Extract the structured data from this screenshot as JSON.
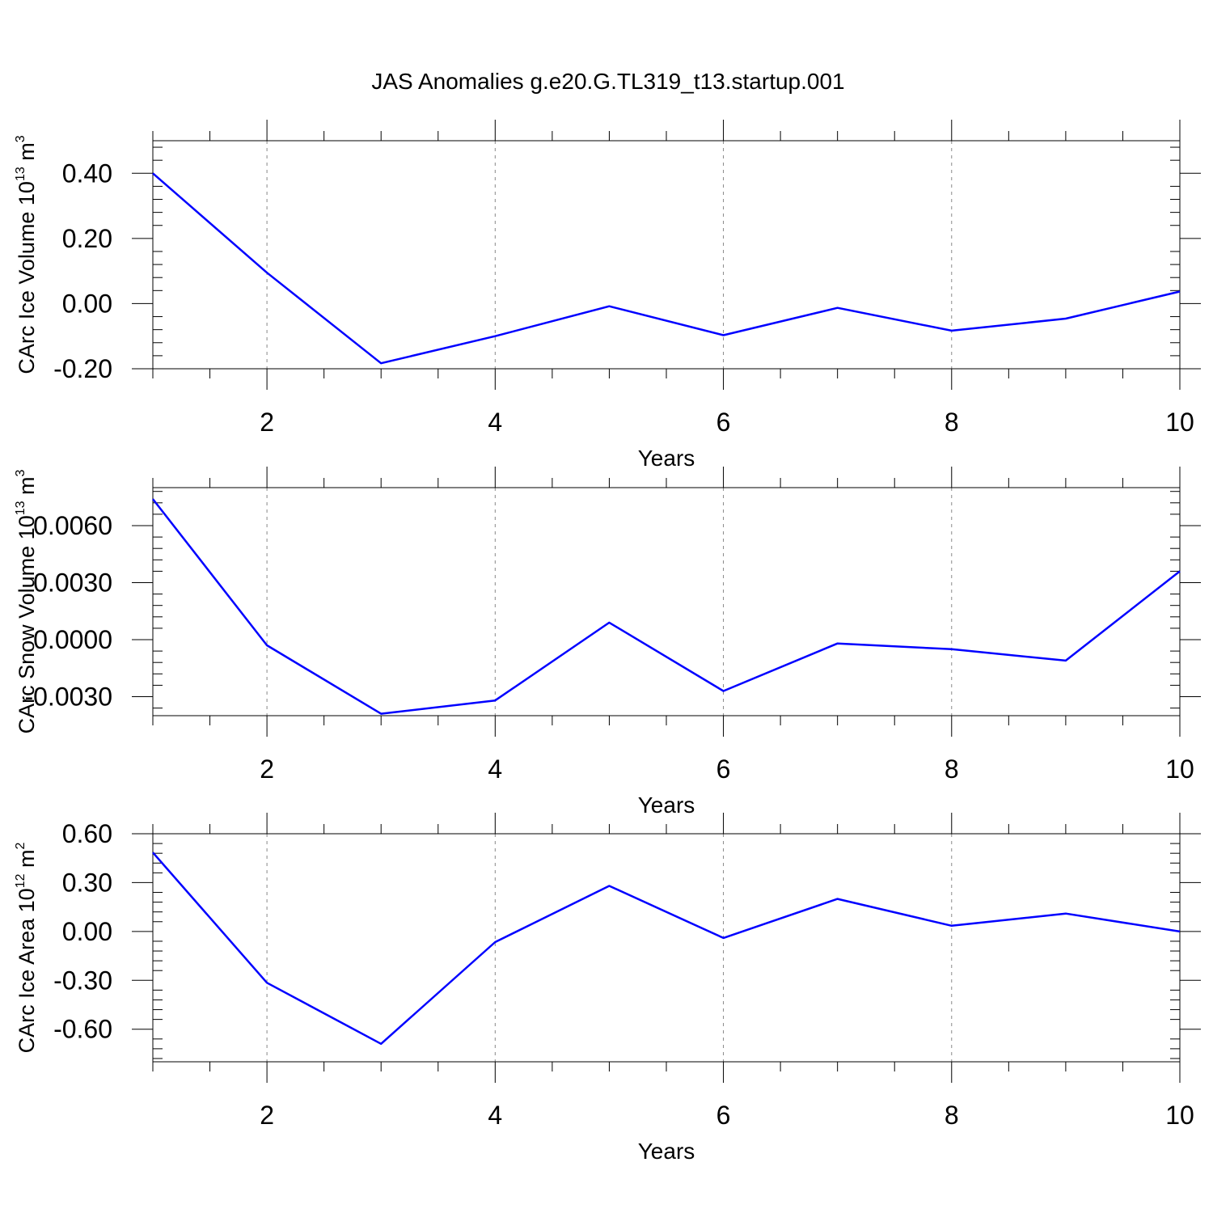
{
  "title": "JAS Anomalies g.e20.G.TL319_t13.startup.001",
  "line_color": "#0000ff",
  "chart_data": [
    {
      "type": "line",
      "ylabel": {
        "text": "CArc Ice Volume 10",
        "sup": "13",
        "unit": " m",
        "unit_sup": "3"
      },
      "xlabel": "Years",
      "xlim": [
        1,
        10
      ],
      "ylim": [
        -0.2,
        0.5
      ],
      "yticks": [
        -0.2,
        0.0,
        0.2,
        0.4
      ],
      "ytick_labels": [
        "-0.20",
        "0.00",
        "0.20",
        "0.40"
      ],
      "xticks": [
        2,
        4,
        6,
        8,
        10
      ],
      "x": [
        1,
        2,
        3,
        4,
        5,
        6,
        7,
        8,
        9,
        10
      ],
      "values": [
        0.4,
        0.095,
        -0.183,
        -0.1,
        -0.008,
        -0.097,
        -0.013,
        -0.083,
        -0.046,
        0.037
      ]
    },
    {
      "type": "line",
      "ylabel": {
        "text": "CArc Snow Volume 10",
        "sup": "13",
        "unit": " m",
        "unit_sup": "3"
      },
      "xlabel": "Years",
      "xlim": [
        1,
        10
      ],
      "ylim": [
        -0.004,
        0.008
      ],
      "yticks": [
        -0.003,
        0.0,
        0.003,
        0.006
      ],
      "ytick_labels": [
        "-0.0030",
        "0.0000",
        "0.0030",
        "0.0060"
      ],
      "xticks": [
        2,
        4,
        6,
        8,
        10
      ],
      "x": [
        1,
        2,
        3,
        4,
        5,
        6,
        7,
        8,
        9,
        10
      ],
      "values": [
        0.0074,
        -0.0003,
        -0.0039,
        -0.0032,
        0.0009,
        -0.0027,
        -0.0002,
        -0.0005,
        -0.0011,
        0.0036
      ]
    },
    {
      "type": "line",
      "ylabel": {
        "text": "CArc Ice Area 10",
        "sup": "12",
        "unit": " m",
        "unit_sup": "2"
      },
      "xlabel": "Years",
      "xlim": [
        1,
        10
      ],
      "ylim": [
        -0.8,
        0.6
      ],
      "yticks": [
        -0.6,
        -0.3,
        0.0,
        0.3,
        0.6
      ],
      "ytick_labels": [
        "-0.60",
        "-0.30",
        "0.00",
        "0.30",
        "0.60"
      ],
      "xticks": [
        2,
        4,
        6,
        8,
        10
      ],
      "x": [
        1,
        2,
        3,
        4,
        5,
        6,
        7,
        8,
        9,
        10
      ],
      "values": [
        0.485,
        -0.315,
        -0.69,
        -0.065,
        0.28,
        -0.04,
        0.2,
        0.035,
        0.11,
        0.0
      ]
    }
  ]
}
